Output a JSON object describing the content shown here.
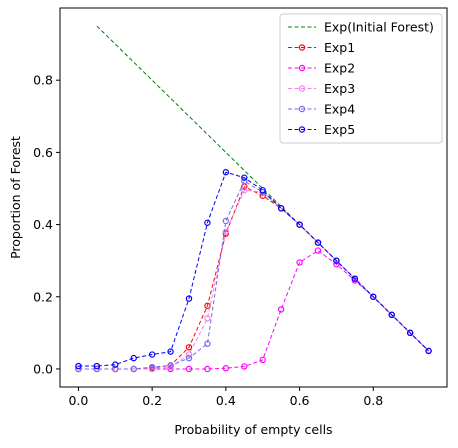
{
  "chart_data": {
    "type": "line",
    "xlabel": "Probability of empty cells",
    "ylabel": "Proportion of Forest",
    "xlim": [
      -0.05,
      1.0
    ],
    "ylim": [
      -0.05,
      1.0
    ],
    "xticks": [
      "0.0",
      "0.2",
      "0.4",
      "0.6",
      "0.8"
    ],
    "yticks": [
      "0.0",
      "0.2",
      "0.4",
      "0.6",
      "0.8"
    ],
    "legend_position": "top-right",
    "grid": false,
    "series": [
      {
        "name": "Exp(Initial Forest)",
        "color": "#008000",
        "marker": false,
        "x": [
          0.05,
          0.95
        ],
        "y": [
          0.95,
          0.05
        ]
      },
      {
        "name": "Exp1",
        "color": "#ff0000",
        "marker": true,
        "x": [
          0.0,
          0.05,
          0.1,
          0.15,
          0.2,
          0.25,
          0.3,
          0.35,
          0.4,
          0.45,
          0.5,
          0.55,
          0.6,
          0.65,
          0.7,
          0.75,
          0.8,
          0.85,
          0.9,
          0.95
        ],
        "y": [
          0.0,
          0.0,
          0.0,
          0.0,
          0.003,
          0.01,
          0.06,
          0.175,
          0.375,
          0.505,
          0.48,
          0.445,
          0.4,
          0.35,
          0.3,
          0.25,
          0.2,
          0.15,
          0.1,
          0.05
        ]
      },
      {
        "name": "Exp2",
        "color": "#ff00ff",
        "marker": true,
        "x": [
          0.0,
          0.05,
          0.1,
          0.15,
          0.2,
          0.25,
          0.3,
          0.35,
          0.4,
          0.45,
          0.5,
          0.55,
          0.6,
          0.65,
          0.7,
          0.75,
          0.8,
          0.85,
          0.9,
          0.95
        ],
        "y": [
          0.0,
          0.0,
          0.0,
          0.0,
          0.0,
          0.0,
          0.0,
          0.0,
          0.002,
          0.007,
          0.025,
          0.165,
          0.295,
          0.328,
          0.29,
          0.245,
          0.2,
          0.15,
          0.1,
          0.05
        ]
      },
      {
        "name": "Exp3",
        "color": "#ee82ee",
        "marker": true,
        "x": [
          0.0,
          0.05,
          0.1,
          0.15,
          0.2,
          0.25,
          0.3,
          0.35,
          0.4,
          0.45,
          0.5,
          0.55,
          0.6,
          0.65,
          0.7,
          0.75,
          0.8,
          0.85,
          0.9,
          0.95
        ],
        "y": [
          0.0,
          0.0,
          0.0,
          0.0,
          0.0,
          0.005,
          0.04,
          0.14,
          0.38,
          0.495,
          0.49,
          0.445,
          0.4,
          0.35,
          0.3,
          0.25,
          0.2,
          0.15,
          0.1,
          0.05
        ]
      },
      {
        "name": "Exp4",
        "color": "#7b68ee",
        "marker": true,
        "x": [
          0.0,
          0.05,
          0.1,
          0.15,
          0.2,
          0.25,
          0.3,
          0.35,
          0.4,
          0.45,
          0.5,
          0.55,
          0.6,
          0.65,
          0.7,
          0.75,
          0.8,
          0.85,
          0.9,
          0.95
        ],
        "y": [
          0.0,
          0.0,
          0.0,
          0.0,
          0.005,
          0.01,
          0.03,
          0.07,
          0.41,
          0.52,
          0.49,
          0.445,
          0.4,
          0.35,
          0.3,
          0.25,
          0.2,
          0.15,
          0.1,
          0.05
        ]
      },
      {
        "name": "Exp5",
        "color": "#0000ff",
        "marker": true,
        "x": [
          0.0,
          0.05,
          0.1,
          0.15,
          0.2,
          0.25,
          0.3,
          0.35,
          0.4,
          0.45,
          0.5,
          0.55,
          0.6,
          0.65,
          0.7,
          0.75,
          0.8,
          0.85,
          0.9,
          0.95
        ],
        "y": [
          0.008,
          0.008,
          0.012,
          0.03,
          0.04,
          0.048,
          0.195,
          0.405,
          0.545,
          0.53,
          0.495,
          0.445,
          0.4,
          0.35,
          0.3,
          0.25,
          0.2,
          0.15,
          0.1,
          0.05
        ]
      }
    ]
  }
}
